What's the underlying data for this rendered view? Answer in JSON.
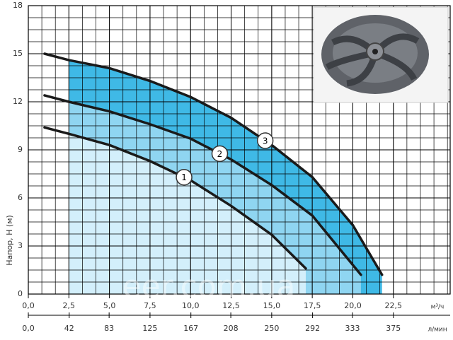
{
  "chart_data": {
    "type": "line",
    "y_label": "Напор, H (м)",
    "x_unit": "м³/ч",
    "x2_unit": "л/мин",
    "watermark": "eer.com.ua",
    "xlim": [
      0,
      26
    ],
    "ylim": [
      0,
      18
    ],
    "x2lim": [
      0,
      433.33
    ],
    "xticks": [
      {
        "value": 0,
        "label": "0,0"
      },
      {
        "value": 2.5,
        "label": "2,5"
      },
      {
        "value": 5,
        "label": "5,0"
      },
      {
        "value": 7.5,
        "label": "7,5"
      },
      {
        "value": 10,
        "label": "10,0"
      },
      {
        "value": 12.5,
        "label": "12,5"
      },
      {
        "value": 15,
        "label": "15,0"
      },
      {
        "value": 17.5,
        "label": "17,5"
      },
      {
        "value": 20,
        "label": "20,0"
      },
      {
        "value": 22.5,
        "label": "22,5"
      }
    ],
    "x2ticks": [
      {
        "value": 0,
        "label": "0,0"
      },
      42,
      83,
      125,
      167,
      208,
      250,
      292,
      333,
      375
    ],
    "yticks": [
      0,
      3,
      6,
      9,
      12,
      15,
      18
    ],
    "grid": true,
    "series": [
      {
        "name": "1",
        "color": "#1a1a1a",
        "x": [
          1,
          2.5,
          5,
          7.5,
          10,
          12.5,
          15,
          17.1
        ],
        "values": [
          10.4,
          10.0,
          9.3,
          8.3,
          7.1,
          5.5,
          3.7,
          1.6
        ]
      },
      {
        "name": "2",
        "color": "#1a1a1a",
        "x": [
          1,
          2.5,
          5,
          7.5,
          10,
          12.5,
          15,
          17.5,
          20.5
        ],
        "values": [
          12.4,
          12.0,
          11.4,
          10.6,
          9.7,
          8.4,
          6.8,
          4.9,
          1.2
        ]
      },
      {
        "name": "3",
        "color": "#1a1a1a",
        "x": [
          1,
          2.5,
          5,
          7.5,
          10,
          12.5,
          15,
          17.5,
          20,
          21.8
        ],
        "values": [
          15.0,
          14.6,
          14.1,
          13.3,
          12.3,
          11.0,
          9.3,
          7.3,
          4.3,
          1.2
        ]
      }
    ]
  }
}
